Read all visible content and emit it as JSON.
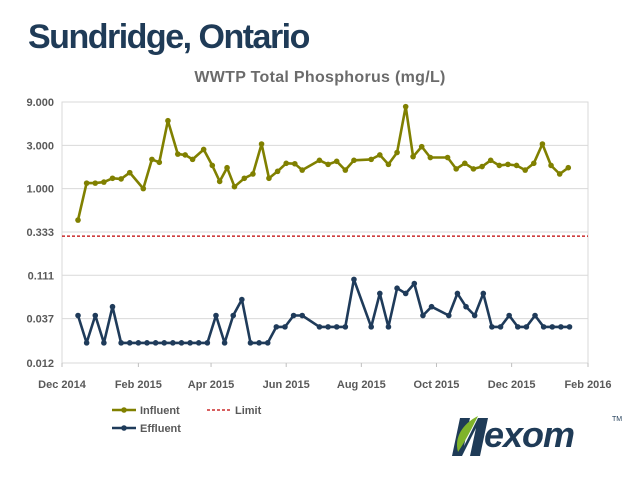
{
  "slide_title": "Sundridge, Ontario",
  "logo": {
    "text": "exom",
    "tm": "TM",
    "lettering": "Nexom"
  },
  "colors": {
    "influent": "#808000",
    "effluent": "#1f3b5a",
    "limit": "#c00000",
    "grid": "#d9d9d9",
    "title": "#1f3b57"
  },
  "chart_data": {
    "type": "line",
    "title": "WWTP Total Phosphorus (mg/L)",
    "xlabel": "",
    "ylabel": "",
    "y_scale": "log",
    "ylim": [
      0.012,
      9.0
    ],
    "y_ticks": [
      0.012,
      0.037,
      0.111,
      0.333,
      1.0,
      3.0,
      9.0
    ],
    "y_tick_labels": [
      "0.012",
      "0.037",
      "0.111",
      "0.333",
      "1.000",
      "3.000",
      "9.000"
    ],
    "xlim": [
      "2014-12-01",
      "2016-02-01"
    ],
    "x_ticks": [
      "2014-12-01",
      "2015-02-01",
      "2015-04-01",
      "2015-06-01",
      "2015-08-01",
      "2015-10-01",
      "2015-12-01",
      "2016-02-01"
    ],
    "x_tick_labels": [
      "Dec 2014",
      "Feb 2015",
      "Apr 2015",
      "Jun 2015",
      "Aug 2015",
      "Oct 2015",
      "Dec 2015",
      "Feb 2016"
    ],
    "grid": "horizontal",
    "legend_position": "bottom-left",
    "series": [
      {
        "name": "Influent",
        "color": "#808000",
        "marker": "circle",
        "points": [
          [
            "2014-12-14",
            0.45
          ],
          [
            "2014-12-21",
            1.15
          ],
          [
            "2014-12-28",
            1.15
          ],
          [
            "2015-01-04",
            1.18
          ],
          [
            "2015-01-11",
            1.3
          ],
          [
            "2015-01-18",
            1.28
          ],
          [
            "2015-01-25",
            1.5
          ],
          [
            "2015-02-05",
            1.0
          ],
          [
            "2015-02-12",
            2.1
          ],
          [
            "2015-02-18",
            1.95
          ],
          [
            "2015-02-25",
            5.6
          ],
          [
            "2015-03-05",
            2.4
          ],
          [
            "2015-03-11",
            2.35
          ],
          [
            "2015-03-17",
            2.1
          ],
          [
            "2015-03-26",
            2.7
          ],
          [
            "2015-04-02",
            1.8
          ],
          [
            "2015-04-08",
            1.2
          ],
          [
            "2015-04-14",
            1.7
          ],
          [
            "2015-04-20",
            1.05
          ],
          [
            "2015-04-28",
            1.3
          ],
          [
            "2015-05-05",
            1.45
          ],
          [
            "2015-05-12",
            3.1
          ],
          [
            "2015-05-18",
            1.3
          ],
          [
            "2015-05-25",
            1.55
          ],
          [
            "2015-06-01",
            1.9
          ],
          [
            "2015-06-08",
            1.88
          ],
          [
            "2015-06-14",
            1.6
          ],
          [
            "2015-06-28",
            2.05
          ],
          [
            "2015-07-05",
            1.85
          ],
          [
            "2015-07-12",
            2.0
          ],
          [
            "2015-07-19",
            1.6
          ],
          [
            "2015-07-26",
            2.05
          ],
          [
            "2015-08-09",
            2.1
          ],
          [
            "2015-08-16",
            2.35
          ],
          [
            "2015-08-23",
            1.85
          ],
          [
            "2015-08-30",
            2.5
          ],
          [
            "2015-09-06",
            8.0
          ],
          [
            "2015-09-12",
            2.25
          ],
          [
            "2015-09-19",
            2.9
          ],
          [
            "2015-09-26",
            2.2
          ],
          [
            "2015-10-10",
            2.2
          ],
          [
            "2015-10-17",
            1.65
          ],
          [
            "2015-10-24",
            1.9
          ],
          [
            "2015-10-31",
            1.65
          ],
          [
            "2015-11-07",
            1.75
          ],
          [
            "2015-11-14",
            2.05
          ],
          [
            "2015-11-21",
            1.8
          ],
          [
            "2015-11-28",
            1.85
          ],
          [
            "2015-12-05",
            1.8
          ],
          [
            "2015-12-12",
            1.6
          ],
          [
            "2015-12-19",
            1.9
          ],
          [
            "2015-12-26",
            3.1
          ],
          [
            "2016-01-02",
            1.8
          ],
          [
            "2016-01-09",
            1.45
          ],
          [
            "2016-01-16",
            1.7
          ]
        ]
      },
      {
        "name": "Effluent",
        "color": "#1f3b5a",
        "marker": "circle",
        "points": [
          [
            "2014-12-14",
            0.04
          ],
          [
            "2014-12-21",
            0.02
          ],
          [
            "2014-12-28",
            0.04
          ],
          [
            "2015-01-04",
            0.02
          ],
          [
            "2015-01-11",
            0.05
          ],
          [
            "2015-01-18",
            0.02
          ],
          [
            "2015-01-25",
            0.02
          ],
          [
            "2015-02-01",
            0.02
          ],
          [
            "2015-02-08",
            0.02
          ],
          [
            "2015-02-15",
            0.02
          ],
          [
            "2015-02-22",
            0.02
          ],
          [
            "2015-03-01",
            0.02
          ],
          [
            "2015-03-08",
            0.02
          ],
          [
            "2015-03-15",
            0.02
          ],
          [
            "2015-03-22",
            0.02
          ],
          [
            "2015-03-29",
            0.02
          ],
          [
            "2015-04-05",
            0.04
          ],
          [
            "2015-04-12",
            0.02
          ],
          [
            "2015-04-19",
            0.04
          ],
          [
            "2015-04-26",
            0.06
          ],
          [
            "2015-05-03",
            0.02
          ],
          [
            "2015-05-10",
            0.02
          ],
          [
            "2015-05-17",
            0.02
          ],
          [
            "2015-05-24",
            0.03
          ],
          [
            "2015-05-31",
            0.03
          ],
          [
            "2015-06-07",
            0.04
          ],
          [
            "2015-06-14",
            0.04
          ],
          [
            "2015-06-28",
            0.03
          ],
          [
            "2015-07-05",
            0.03
          ],
          [
            "2015-07-12",
            0.03
          ],
          [
            "2015-07-19",
            0.03
          ],
          [
            "2015-07-26",
            0.1
          ],
          [
            "2015-08-09",
            0.03
          ],
          [
            "2015-08-16",
            0.07
          ],
          [
            "2015-08-23",
            0.03
          ],
          [
            "2015-08-30",
            0.08
          ],
          [
            "2015-09-06",
            0.07
          ],
          [
            "2015-09-13",
            0.09
          ],
          [
            "2015-09-20",
            0.04
          ],
          [
            "2015-09-27",
            0.05
          ],
          [
            "2015-10-11",
            0.04
          ],
          [
            "2015-10-18",
            0.07
          ],
          [
            "2015-10-25",
            0.05
          ],
          [
            "2015-11-01",
            0.04
          ],
          [
            "2015-11-08",
            0.07
          ],
          [
            "2015-11-15",
            0.03
          ],
          [
            "2015-11-22",
            0.03
          ],
          [
            "2015-11-29",
            0.04
          ],
          [
            "2015-12-06",
            0.03
          ],
          [
            "2015-12-13",
            0.03
          ],
          [
            "2015-12-20",
            0.04
          ],
          [
            "2015-12-27",
            0.03
          ],
          [
            "2016-01-03",
            0.03
          ],
          [
            "2016-01-10",
            0.03
          ],
          [
            "2016-01-17",
            0.03
          ]
        ]
      },
      {
        "name": "Limit",
        "color": "#c00000",
        "style": "dashed",
        "constant": 0.3
      }
    ]
  }
}
